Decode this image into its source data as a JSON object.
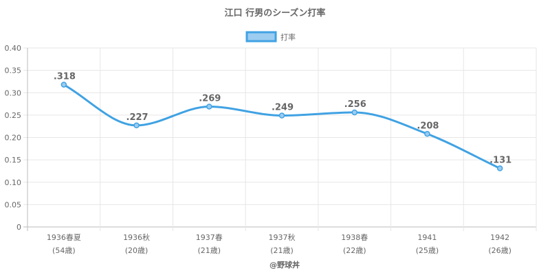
{
  "chart_data": {
    "type": "line",
    "title": "江口 行男のシーズン打率",
    "series": [
      {
        "name": "打率",
        "values": [
          0.318,
          0.227,
          0.269,
          0.249,
          0.256,
          0.208,
          0.131
        ]
      }
    ],
    "categories": [
      "1936春夏",
      "1936秋",
      "1937春",
      "1937秋",
      "1938春",
      "1941",
      "1942"
    ],
    "category_sublabels": [
      "(54歳)",
      "(20歳)",
      "(21歳)",
      "(21歳)",
      "(22歳)",
      "(25歳)",
      "(26歳)"
    ],
    "data_labels": [
      ".318",
      ".227",
      ".269",
      ".249",
      ".256",
      ".208",
      ".131"
    ],
    "y_ticks": [
      "0",
      "0.05",
      "0.10",
      "0.15",
      "0.20",
      "0.25",
      "0.30",
      "0.35",
      "0.40"
    ],
    "ylim": [
      0,
      0.4
    ],
    "xlabel": "",
    "ylabel": "",
    "grid": true,
    "legend_position": "top",
    "line_color": "#40a2e3",
    "legend_fill": "#9cccf0",
    "footer": "@野球丼"
  }
}
